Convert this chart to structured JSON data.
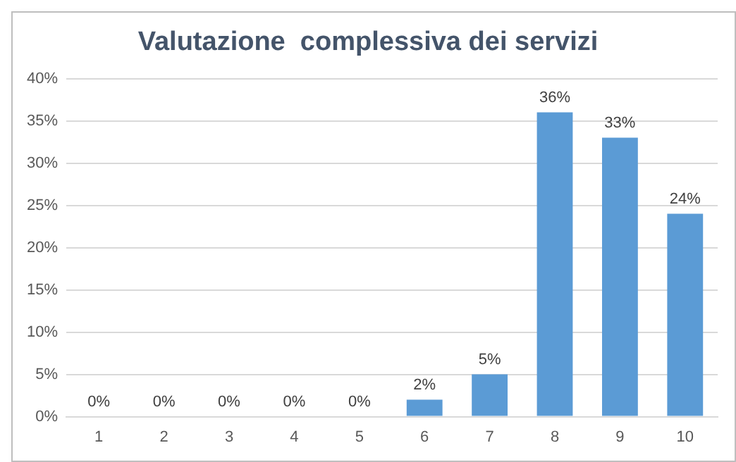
{
  "chart_data": {
    "type": "bar",
    "title": "Valutazione  complessiva dei servizi",
    "categories": [
      "1",
      "2",
      "3",
      "4",
      "5",
      "6",
      "7",
      "8",
      "9",
      "10"
    ],
    "values": [
      0,
      0,
      0,
      0,
      0,
      2,
      5,
      36,
      33,
      24
    ],
    "value_labels": [
      "0%",
      "0%",
      "0%",
      "0%",
      "0%",
      "2%",
      "5%",
      "36%",
      "33%",
      "24%"
    ],
    "color": "#5b9bd5",
    "ylim": [
      0,
      40
    ],
    "yticks": [
      {
        "value": 0,
        "label": "0%"
      },
      {
        "value": 5,
        "label": "5%"
      },
      {
        "value": 10,
        "label": "10%"
      },
      {
        "value": 15,
        "label": "15%"
      },
      {
        "value": 20,
        "label": "20%"
      },
      {
        "value": 25,
        "label": "25%"
      },
      {
        "value": 30,
        "label": "30%"
      },
      {
        "value": 35,
        "label": "35%"
      },
      {
        "value": 40,
        "label": "40%"
      }
    ],
    "grid": "y"
  }
}
